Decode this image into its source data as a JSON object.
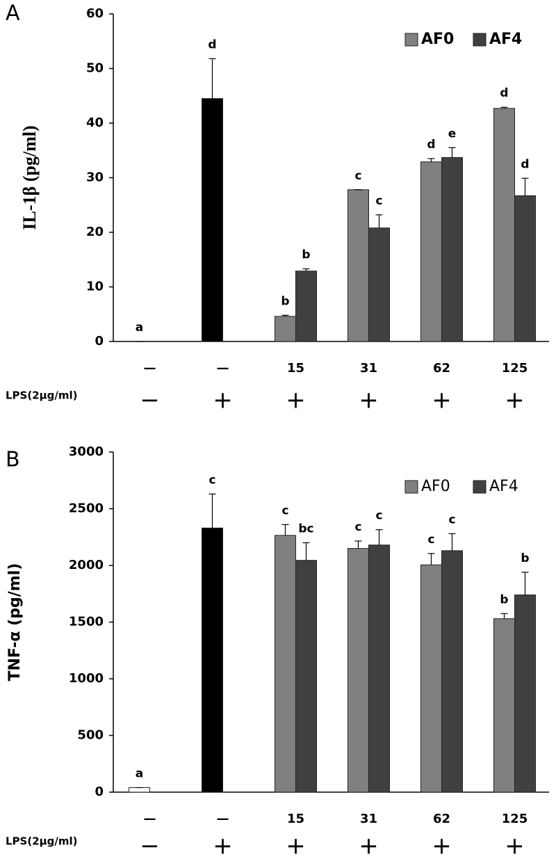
{
  "chart_data": [
    {
      "type": "bar",
      "panel": "A",
      "ylabel": "IL-1β (pg/ml)",
      "categories": [
        "—",
        "—",
        "15",
        "31",
        "62",
        "125"
      ],
      "lps_label": "LPS(2μg/ml)",
      "lps": [
        "−",
        "+",
        "+",
        "+",
        "+",
        "+"
      ],
      "ylim": [
        0,
        60
      ],
      "yticks": [
        0,
        10,
        20,
        30,
        40,
        50,
        60
      ],
      "legend": "upper right",
      "controls": {
        "values": [
          0,
          44.5
        ],
        "errors": [
          0,
          7.3
        ],
        "colors": [
          "#ffffff",
          "#000000"
        ],
        "letters": [
          "a",
          "d"
        ]
      },
      "series": [
        {
          "name": "AF0",
          "color": "#808080",
          "values": [
            null,
            null,
            4.6,
            27.8,
            32.9,
            42.7
          ],
          "errors": [
            null,
            null,
            0.2,
            0,
            0.6,
            0.2
          ],
          "letters": [
            null,
            null,
            "b",
            "c",
            "d",
            "d"
          ]
        },
        {
          "name": "AF4",
          "color": "#404040",
          "values": [
            null,
            null,
            12.9,
            20.8,
            33.7,
            26.7
          ],
          "errors": [
            null,
            null,
            0.4,
            2.4,
            1.8,
            3.2
          ],
          "letters": [
            null,
            null,
            "b",
            "c",
            "e",
            "d"
          ]
        }
      ]
    },
    {
      "type": "bar",
      "panel": "B",
      "ylabel": "TNF-α (pg/ml)",
      "categories": [
        "—",
        "—",
        "15",
        "31",
        "62",
        "125"
      ],
      "lps_label": "LPS(2μg/ml)",
      "lps": [
        "−",
        "+",
        "+",
        "+",
        "+",
        "+"
      ],
      "ylim": [
        0,
        3000
      ],
      "yticks": [
        0,
        500,
        1000,
        1500,
        2000,
        2500,
        3000
      ],
      "legend": "upper right",
      "controls": {
        "values": [
          40,
          2330
        ],
        "errors": [
          0,
          300
        ],
        "colors": [
          "#ffffff",
          "#000000"
        ],
        "letters": [
          "a",
          "c"
        ]
      },
      "series": [
        {
          "name": "AF0",
          "color": "#808080",
          "values": [
            null,
            null,
            2265,
            2150,
            2005,
            1530
          ],
          "errors": [
            null,
            null,
            95,
            65,
            100,
            45
          ],
          "letters": [
            null,
            null,
            "c",
            "c",
            "c",
            "b"
          ]
        },
        {
          "name": "AF4",
          "color": "#404040",
          "values": [
            null,
            null,
            2045,
            2180,
            2130,
            1740
          ],
          "errors": [
            null,
            null,
            155,
            135,
            150,
            200
          ],
          "letters": [
            null,
            null,
            "bc",
            "c",
            "c",
            "b"
          ]
        }
      ]
    }
  ]
}
